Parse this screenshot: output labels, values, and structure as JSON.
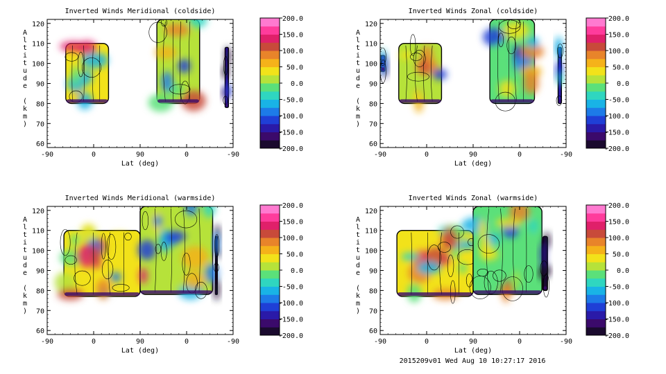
{
  "footer": "2015209v01 Wed Aug 10 10:27:17 2016",
  "colorbar": {
    "ticks": [
      "200.0",
      "150.0",
      "100.0",
      "50.0",
      "0.0",
      "-50.0",
      "-100.0",
      "-150.0",
      "-200.0"
    ],
    "tick_values": [
      200,
      150,
      100,
      50,
      0,
      -50,
      -100,
      -150,
      -200
    ],
    "colors": [
      "#1a0a2e",
      "#3b0a6b",
      "#2a1aa8",
      "#1f3fd6",
      "#1d7be8",
      "#19b3e6",
      "#2fd6c0",
      "#5be07a",
      "#b6e23a",
      "#f2e21a",
      "#f5b21a",
      "#e8842a",
      "#c84a3a",
      "#e0206a",
      "#ff3c9c",
      "#ff7ad0"
    ]
  },
  "panels": [
    {
      "title": "Inverted Winds Meridional (coldside)",
      "xlabel": "Lat (deg)",
      "ylabel": "Altitude (km)",
      "xticks": [
        "-90",
        "0",
        "90",
        "0",
        "-90"
      ],
      "yticks": [
        "60",
        "70",
        "80",
        "90",
        "100",
        "110",
        "120"
      ],
      "chart_data": {
        "type": "heatmap",
        "x_range": [
          -90,
          90,
          -90
        ],
        "ylim": [
          58,
          122
        ],
        "zlim": [
          -200,
          200
        ],
        "blocks": [
          {
            "x_start": 0.1,
            "x_end": 0.33,
            "alt_bottom": 80,
            "alt_top": 110,
            "mean_value": 30
          },
          {
            "x_start": 0.59,
            "x_end": 0.82,
            "alt_bottom": 80,
            "alt_top": 122,
            "mean_value": 10
          },
          {
            "x_start": 0.957,
            "x_end": 0.975,
            "alt_bottom": 78,
            "alt_top": 108,
            "mean_value": -150
          }
        ]
      }
    },
    {
      "title": "Inverted Winds Zonal (coldside)",
      "xlabel": "Lat (deg)",
      "ylabel": "Altitude (km)",
      "xticks": [
        "-90",
        "0",
        "90",
        "0",
        "-90"
      ],
      "yticks": [
        "60",
        "70",
        "80",
        "90",
        "100",
        "110",
        "120"
      ],
      "chart_data": {
        "type": "heatmap",
        "x_range": [
          -90,
          90,
          -90
        ],
        "ylim": [
          58,
          122
        ],
        "zlim": [
          -200,
          200
        ],
        "blocks": [
          {
            "x_start": 0.005,
            "x_end": 0.025,
            "alt_bottom": 96,
            "alt_top": 104,
            "mean_value": -150
          },
          {
            "x_start": 0.1,
            "x_end": 0.33,
            "alt_bottom": 80,
            "alt_top": 110,
            "mean_value": 20
          },
          {
            "x_start": 0.59,
            "x_end": 0.83,
            "alt_bottom": 80,
            "alt_top": 122,
            "mean_value": -20
          },
          {
            "x_start": 0.957,
            "x_end": 0.975,
            "alt_bottom": 80,
            "alt_top": 108,
            "mean_value": -150
          }
        ]
      }
    },
    {
      "title": "Inverted Winds Meridional (warmside)",
      "xlabel": "Lat (deg)",
      "ylabel": "Altitude (km)",
      "xticks": [
        "-90",
        "0",
        "90",
        "0",
        "-90"
      ],
      "yticks": [
        "60",
        "70",
        "80",
        "90",
        "100",
        "110",
        "120"
      ],
      "chart_data": {
        "type": "heatmap",
        "x_range": [
          -90,
          90,
          -90
        ],
        "ylim": [
          58,
          122
        ],
        "zlim": [
          -200,
          200
        ],
        "blocks": [
          {
            "x_start": 0.09,
            "x_end": 0.5,
            "alt_bottom": 77,
            "alt_top": 110,
            "mean_value": 40
          },
          {
            "x_start": 0.5,
            "x_end": 0.89,
            "alt_bottom": 78,
            "alt_top": 122,
            "mean_value": 0
          },
          {
            "x_start": 0.905,
            "x_end": 0.915,
            "alt_bottom": 78,
            "alt_top": 107,
            "mean_value": -180
          }
        ]
      }
    },
    {
      "title": "Inverted Winds Zonal (warmside)",
      "xlabel": "Lat (deg)",
      "ylabel": "Altitude (km)",
      "xticks": [
        "-90",
        "0",
        "90",
        "0",
        "-90"
      ],
      "yticks": [
        "60",
        "70",
        "80",
        "90",
        "100",
        "110",
        "120"
      ],
      "chart_data": {
        "type": "heatmap",
        "x_range": [
          -90,
          90,
          -90
        ],
        "ylim": [
          58,
          122
        ],
        "zlim": [
          -200,
          200
        ],
        "blocks": [
          {
            "x_start": 0.09,
            "x_end": 0.5,
            "alt_bottom": 77,
            "alt_top": 110,
            "mean_value": 30
          },
          {
            "x_start": 0.5,
            "x_end": 0.87,
            "alt_bottom": 78,
            "alt_top": 122,
            "mean_value": -10
          },
          {
            "x_start": 0.875,
            "x_end": 0.9,
            "alt_bottom": 80,
            "alt_top": 107,
            "mean_value": -180
          }
        ]
      }
    }
  ]
}
